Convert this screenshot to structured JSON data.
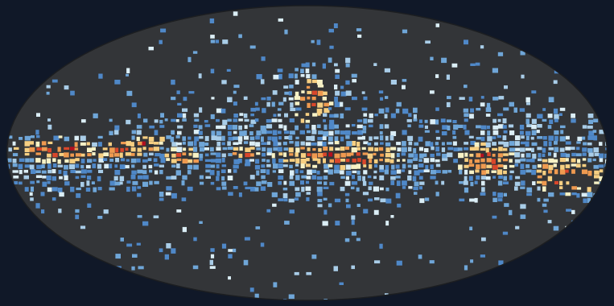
{
  "map": {
    "projection": "mollweide",
    "background_color": "#101828",
    "disk_color": "#333538",
    "outline_color": "#1c1e21",
    "colormap": [
      "#a9cde8",
      "#6fa6d8",
      "#4f88c8",
      "#dbeef6",
      "#f7f2c6",
      "#f6cf82",
      "#ef9a50",
      "#d9472b",
      "#b40f1f"
    ],
    "description_visible": false
  }
}
